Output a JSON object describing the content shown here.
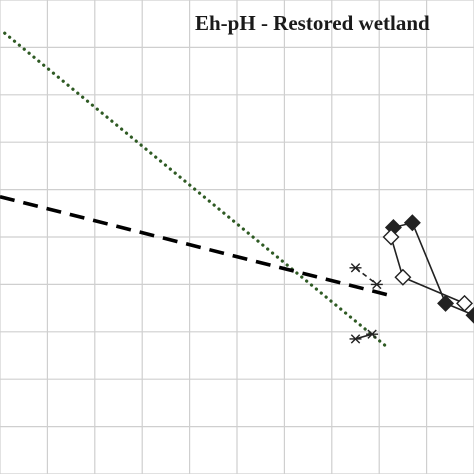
{
  "chart_data": {
    "type": "scatter",
    "title": "Eh-pH - Restored wetland",
    "grid": true,
    "xlim": [
      0,
      10
    ],
    "ylim": [
      0,
      10
    ],
    "reference_lines": [
      {
        "style": "dotted",
        "color": "#2e5a23",
        "x": [
          0.1,
          8.2
        ],
        "y": [
          9.3,
          2.65
        ]
      },
      {
        "style": "dashed",
        "color": "#000000",
        "x": [
          0.0,
          8.3
        ],
        "y": [
          5.85,
          3.75
        ]
      }
    ],
    "series": [
      {
        "marker": "filled-diamond",
        "color": "#222222",
        "connected": true,
        "points": [
          [
            8.3,
            5.2
          ],
          [
            8.7,
            5.3
          ],
          [
            9.4,
            3.6
          ],
          [
            10.0,
            3.35
          ]
        ]
      },
      {
        "marker": "open-diamond",
        "color": "#222222",
        "connected": true,
        "points": [
          [
            8.25,
            5.0
          ],
          [
            8.5,
            4.15
          ],
          [
            9.8,
            3.6
          ]
        ]
      },
      {
        "marker": "asterisk",
        "color": "#222222",
        "connected": true,
        "dashed": true,
        "points": [
          [
            7.5,
            4.35
          ],
          [
            7.95,
            4.0
          ]
        ]
      },
      {
        "marker": "asterisk",
        "color": "#222222",
        "connected": true,
        "points": [
          [
            7.5,
            2.85
          ],
          [
            7.85,
            2.95
          ]
        ]
      }
    ]
  }
}
